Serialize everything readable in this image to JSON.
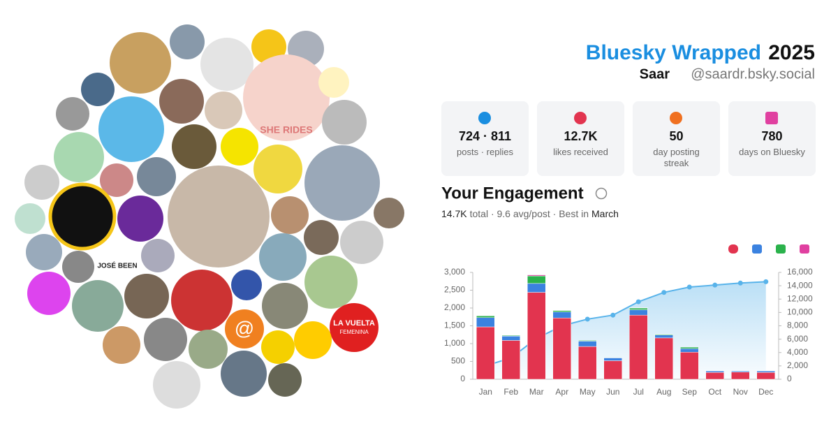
{
  "header": {
    "title": "Bluesky Wrapped",
    "year": "2025",
    "name": "Saar",
    "handle": "@saardr.bsky.social"
  },
  "stats": [
    {
      "value": "724 · 811",
      "label": "posts · replies"
    },
    {
      "value": "12.7K",
      "label": "likes received"
    },
    {
      "value": "50",
      "label": "day posting streak"
    },
    {
      "value": "780",
      "label": "days on Bluesky"
    }
  ],
  "avatar_texts": [
    "JOSÉ BEEN",
    "LA VUELTA",
    "FEMENINA",
    "SHE RIDES",
    "@"
  ],
  "chart_data": {
    "type": "bar",
    "stacked": true,
    "title": "Your Engagement",
    "summary": [
      "14.7K",
      "total · 9.6 avg/post · Best in",
      "March"
    ],
    "categories": [
      "Jan",
      "Feb",
      "Mar",
      "Apr",
      "May",
      "Jun",
      "Jul",
      "Aug",
      "Sep",
      "Oct",
      "Nov",
      "Dec"
    ],
    "series": [
      {
        "color": "#e2344f",
        "values": [
          1470,
          1090,
          2440,
          1720,
          920,
          520,
          1800,
          1160,
          760,
          190,
          200,
          190
        ]
      },
      {
        "color": "#3b82e0",
        "values": [
          260,
          120,
          250,
          170,
          150,
          80,
          150,
          80,
          100,
          40,
          30,
          40
        ]
      },
      {
        "color": "#2bb24c",
        "values": [
          50,
          20,
          210,
          40,
          20,
          10,
          50,
          20,
          40,
          10,
          10,
          10
        ]
      },
      {
        "color": "#e040a0",
        "values": [
          10,
          0,
          30,
          10,
          0,
          0,
          10,
          0,
          0,
          0,
          0,
          0
        ]
      },
      {
        "type": "line",
        "axis": "y2",
        "color": "#58b3ea",
        "values": [
          2000,
          3200,
          6100,
          8000,
          9000,
          9600,
          11600,
          13000,
          13800,
          14100,
          14400,
          14600
        ]
      }
    ],
    "ylim": [
      0,
      3000
    ],
    "yticks": [
      0,
      500,
      {
        "value": 1000,
        "label": "1,000"
      },
      {
        "value": 1500,
        "label": "1,500"
      },
      {
        "value": 2000,
        "label": "2,000"
      },
      {
        "value": 2500,
        "label": "2,500"
      },
      {
        "value": 3000,
        "label": "3,000"
      }
    ],
    "y2lim": [
      0,
      16000
    ],
    "y2ticks": [
      0,
      {
        "value": 2000,
        "label": "2,000"
      },
      {
        "value": 4000,
        "label": "4,000"
      },
      {
        "value": 6000,
        "label": "6,000"
      },
      {
        "value": 8000,
        "label": "8,000"
      },
      {
        "value": 10000,
        "label": "10,000"
      },
      {
        "value": 12000,
        "label": "12,000"
      },
      {
        "value": 14000,
        "label": "14,000"
      },
      {
        "value": 16000,
        "label": "16,000"
      }
    ],
    "grid": false
  }
}
